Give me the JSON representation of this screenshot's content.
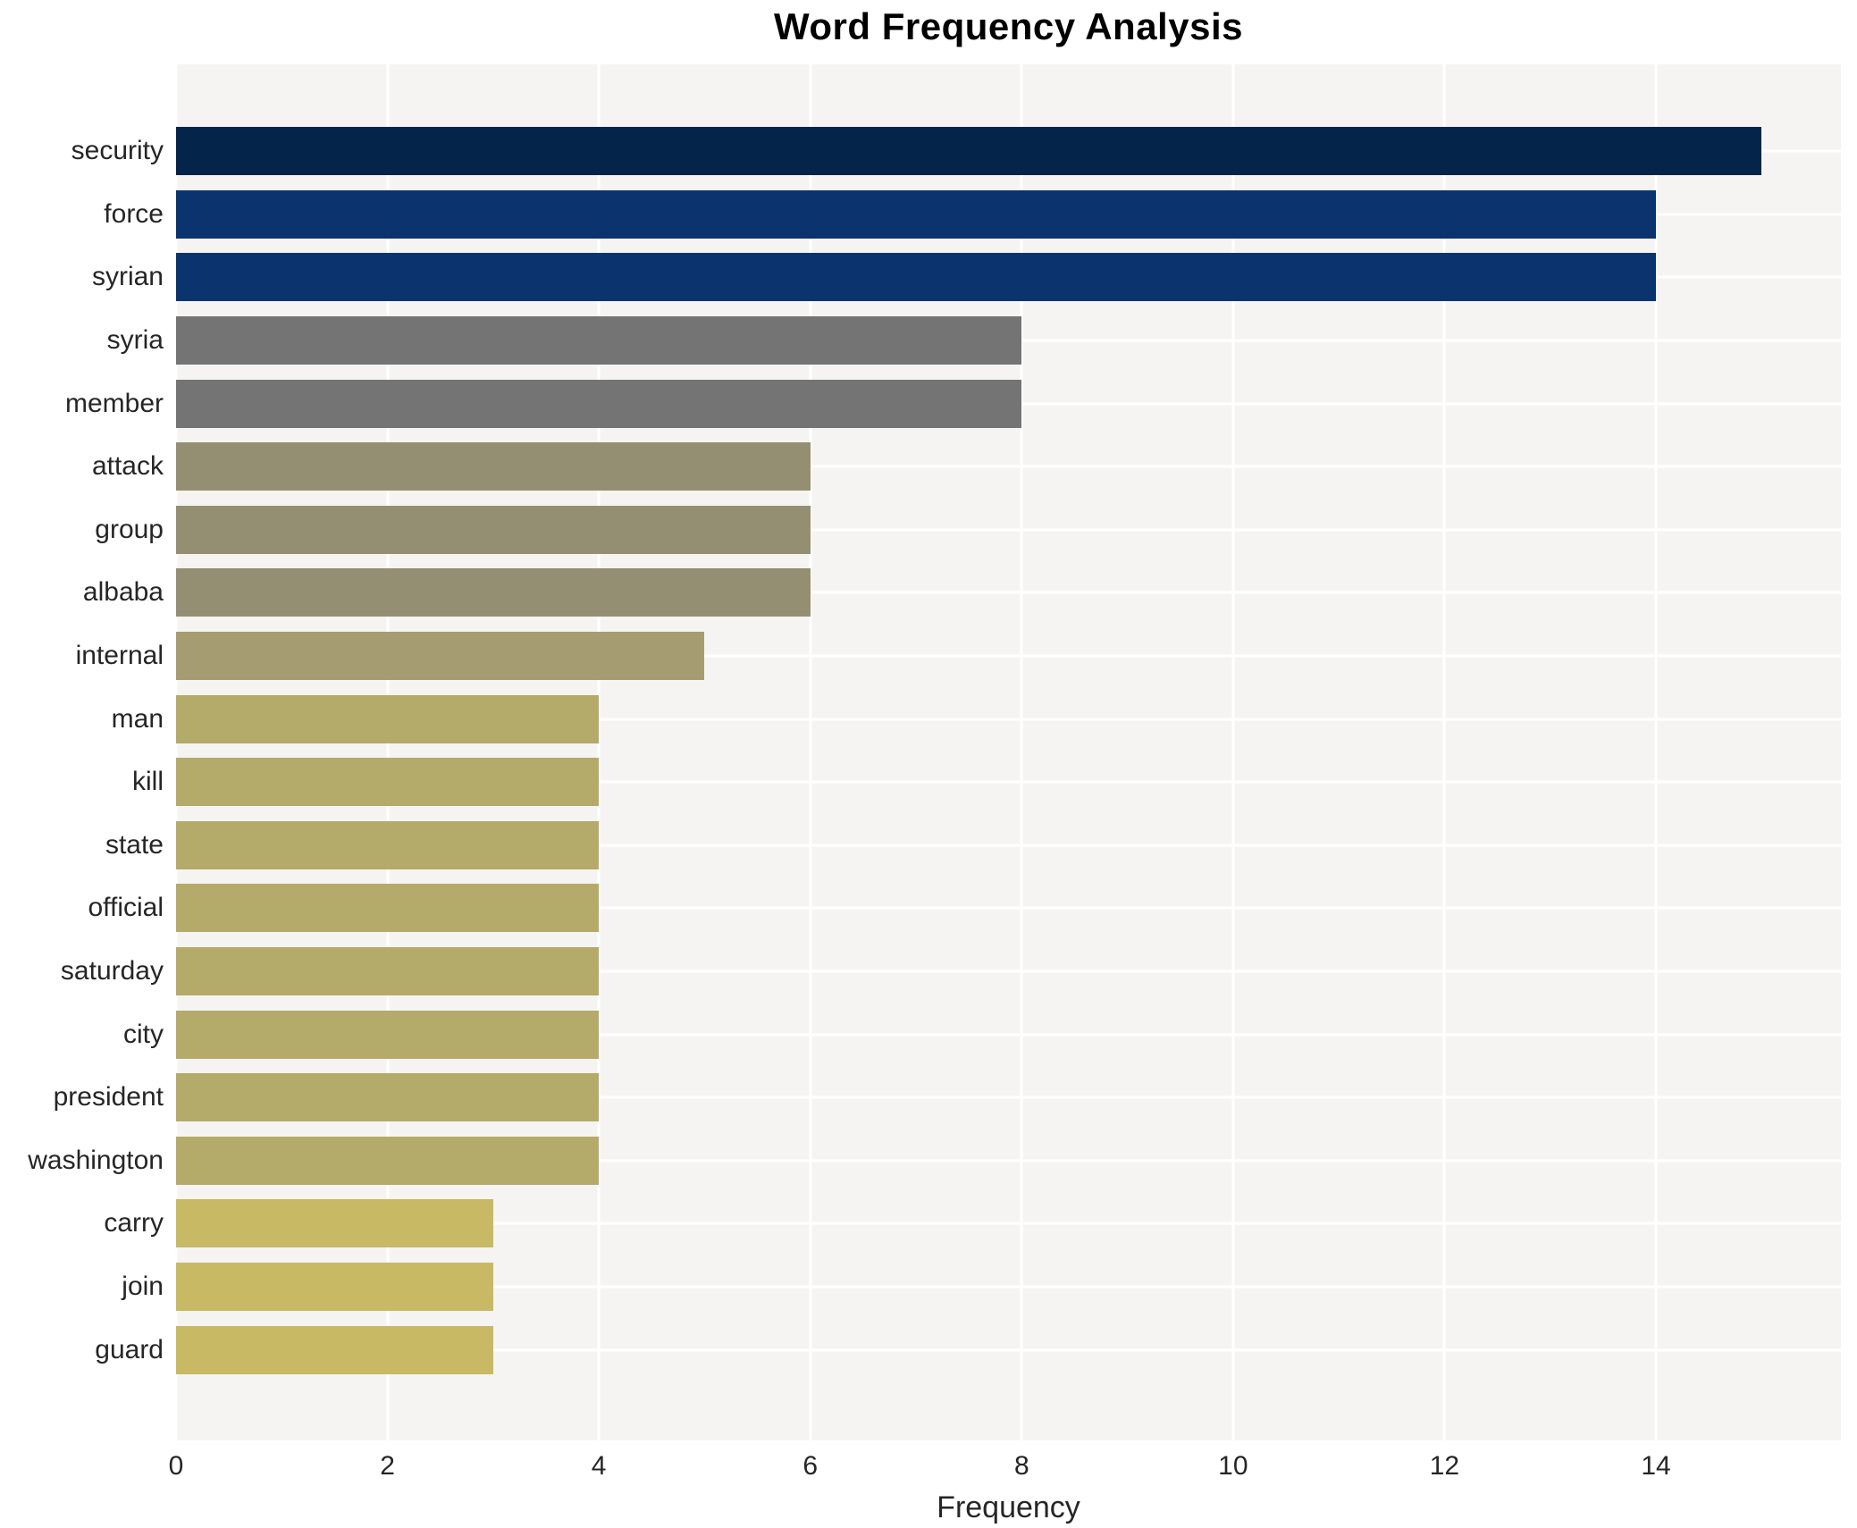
{
  "chart_data": {
    "type": "bar",
    "orientation": "horizontal",
    "title": "Word Frequency Analysis",
    "xlabel": "Frequency",
    "ylabel": "",
    "categories": [
      "security",
      "force",
      "syrian",
      "syria",
      "member",
      "attack",
      "group",
      "albaba",
      "internal",
      "man",
      "kill",
      "state",
      "official",
      "saturday",
      "city",
      "president",
      "washington",
      "carry",
      "join",
      "guard"
    ],
    "values": [
      15,
      14,
      14,
      8,
      8,
      6,
      6,
      6,
      5,
      4,
      4,
      4,
      4,
      4,
      4,
      4,
      4,
      3,
      3,
      3
    ],
    "bar_colors": [
      "#042449",
      "#0b346f",
      "#0b346f",
      "#747474",
      "#747474",
      "#948f72",
      "#948f72",
      "#948f72",
      "#a59d71",
      "#b4aa6a",
      "#b4aa6a",
      "#b4aa6a",
      "#b4aa6a",
      "#b4aa6a",
      "#b4aa6a",
      "#b4aa6a",
      "#b4aa6a",
      "#c8b964",
      "#c8b964",
      "#c8b964"
    ],
    "xlim": [
      0,
      15.75
    ],
    "x_ticks": [
      0,
      2,
      4,
      6,
      8,
      10,
      12,
      14
    ],
    "legend": "none",
    "grid": "on",
    "plot_bg_color": "#f5f4f2",
    "grid_color": "#ffffff"
  }
}
